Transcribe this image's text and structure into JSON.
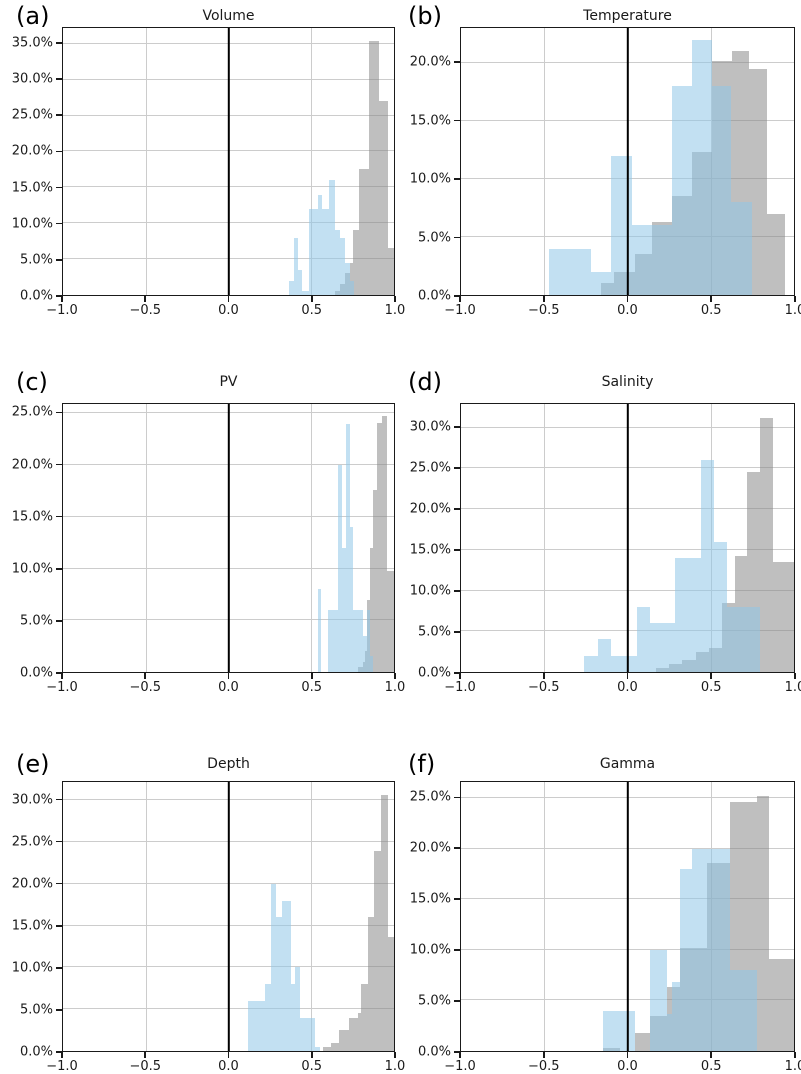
{
  "figure": {
    "background_color": "#ffffff",
    "frame_color": "#1a1a1a",
    "grid_color": "#cccccc",
    "zero_line_color": "#000000",
    "blue_fill_color": "#8FC6E8",
    "gray_fill_color": "#858585",
    "overlap_color": "#a8c4d5",
    "x_ticks": [
      -1.0,
      -0.5,
      0.0,
      0.5,
      1.0
    ],
    "x_tick_labels": [
      "−1.0",
      "−0.5",
      "0.0",
      "0.5",
      "1.0"
    ],
    "x_gridlines": [
      -0.5,
      0.5
    ],
    "bar_schema": [
      "x_start",
      "x_end",
      "percent"
    ]
  },
  "chart_data": [
    {
      "type": "bar",
      "panel_label": "(a)",
      "title": "Volume",
      "xlabel": "",
      "ylabel": "",
      "xlim": [
        -1.0,
        1.0
      ],
      "ylim": [
        0,
        37.2
      ],
      "yticks": [
        0,
        5,
        10,
        15,
        20,
        25,
        30,
        35
      ],
      "ytick_labels": [
        "0.0%",
        "5.0%",
        "10.0%",
        "15.0%",
        "20.0%",
        "25.0%",
        "30.0%",
        "35.0%"
      ],
      "zero_line_x": 0,
      "grid": true,
      "legend": false,
      "series": [
        {
          "name": "gray",
          "bars": [
            [
              0.645,
              0.675,
              0.5
            ],
            [
              0.675,
              0.705,
              1.5
            ],
            [
              0.705,
              0.735,
              3.0
            ],
            [
              0.735,
              0.755,
              4.5
            ],
            [
              0.755,
              0.79,
              9.0
            ],
            [
              0.79,
              0.85,
              17.5
            ],
            [
              0.85,
              0.91,
              35.4
            ],
            [
              0.91,
              0.965,
              27.0
            ],
            [
              0.965,
              1.0,
              6.5
            ]
          ]
        },
        {
          "name": "lightblue",
          "bars": [
            [
              0.367,
              0.397,
              2.0
            ],
            [
              0.397,
              0.422,
              8.0
            ],
            [
              0.422,
              0.447,
              3.5
            ],
            [
              0.447,
              0.487,
              0.5
            ],
            [
              0.487,
              0.54,
              12.0
            ],
            [
              0.54,
              0.565,
              14.0
            ],
            [
              0.565,
              0.61,
              12.0
            ],
            [
              0.61,
              0.645,
              16.0
            ],
            [
              0.645,
              0.675,
              9.0
            ],
            [
              0.675,
              0.705,
              8.0
            ],
            [
              0.705,
              0.735,
              4.5
            ],
            [
              0.735,
              0.76,
              2.0
            ]
          ]
        }
      ]
    },
    {
      "type": "bar",
      "panel_label": "(b)",
      "title": "Temperature",
      "xlabel": "",
      "ylabel": "",
      "xlim": [
        -1.0,
        1.0
      ],
      "ylim": [
        0,
        23.0
      ],
      "yticks": [
        0,
        5,
        10,
        15,
        20
      ],
      "ytick_labels": [
        "0.0%",
        "5.0%",
        "10.0%",
        "15.0%",
        "20.0%"
      ],
      "zero_line_x": 0,
      "grid": true,
      "legend": false,
      "series": [
        {
          "name": "gray",
          "bars": [
            [
              -0.16,
              -0.08,
              1.0
            ],
            [
              -0.08,
              0.045,
              2.0
            ],
            [
              0.045,
              0.15,
              3.5
            ],
            [
              0.15,
              0.27,
              6.3
            ],
            [
              0.27,
              0.385,
              8.5
            ],
            [
              0.385,
              0.505,
              12.3
            ],
            [
              0.505,
              0.625,
              20.2
            ],
            [
              0.625,
              0.73,
              21.0
            ],
            [
              0.73,
              0.835,
              19.5
            ],
            [
              0.835,
              0.945,
              7.0
            ]
          ]
        },
        {
          "name": "lightblue",
          "bars": [
            [
              -0.47,
              -0.22,
              4.0
            ],
            [
              -0.22,
              -0.1,
              2.0
            ],
            [
              -0.1,
              0.03,
              12.0
            ],
            [
              0.03,
              0.27,
              6.0
            ],
            [
              0.27,
              0.385,
              18.0
            ],
            [
              0.385,
              0.505,
              22.0
            ],
            [
              0.505,
              0.62,
              18.0
            ],
            [
              0.62,
              0.745,
              8.0
            ]
          ]
        }
      ]
    },
    {
      "type": "bar",
      "panel_label": "(c)",
      "title": "PV",
      "xlabel": "",
      "ylabel": "",
      "xlim": [
        -1.0,
        1.0
      ],
      "ylim": [
        0,
        25.9
      ],
      "yticks": [
        0,
        5,
        10,
        15,
        20,
        25
      ],
      "ytick_labels": [
        "0.0%",
        "5.0%",
        "10.0%",
        "15.0%",
        "20.0%",
        "25.0%"
      ],
      "zero_line_x": 0,
      "grid": true,
      "legend": false,
      "series": [
        {
          "name": "gray",
          "bars": [
            [
              0.78,
              0.81,
              0.5
            ],
            [
              0.81,
              0.825,
              1.0
            ],
            [
              0.825,
              0.838,
              2.0
            ],
            [
              0.838,
              0.858,
              7.0
            ],
            [
              0.858,
              0.875,
              12.0
            ],
            [
              0.875,
              0.895,
              17.6
            ],
            [
              0.895,
              0.925,
              24.1
            ],
            [
              0.925,
              0.955,
              24.7
            ],
            [
              0.955,
              1.0,
              9.8
            ]
          ]
        },
        {
          "name": "lightblue",
          "bars": [
            [
              0.538,
              0.56,
              8.0
            ],
            [
              0.6,
              0.66,
              6.0
            ],
            [
              0.66,
              0.685,
              20.0
            ],
            [
              0.685,
              0.71,
              12.0
            ],
            [
              0.71,
              0.734,
              24.0
            ],
            [
              0.734,
              0.755,
              14.0
            ],
            [
              0.755,
              0.81,
              6.0
            ],
            [
              0.81,
              0.838,
              3.5
            ],
            [
              0.838,
              0.858,
              6.0
            ],
            [
              0.858,
              0.875,
              1.5
            ]
          ]
        }
      ]
    },
    {
      "type": "bar",
      "panel_label": "(d)",
      "title": "Salinity",
      "xlabel": "",
      "ylabel": "",
      "xlim": [
        -1.0,
        1.0
      ],
      "ylim": [
        0,
        32.9
      ],
      "yticks": [
        0,
        5,
        10,
        15,
        20,
        25,
        30
      ],
      "ytick_labels": [
        "0.0%",
        "5.0%",
        "10.0%",
        "15.0%",
        "20.0%",
        "25.0%",
        "30.0%"
      ],
      "zero_line_x": 0,
      "grid": true,
      "legend": false,
      "series": [
        {
          "name": "gray",
          "bars": [
            [
              0.17,
              0.25,
              0.5
            ],
            [
              0.25,
              0.33,
              1.0
            ],
            [
              0.33,
              0.41,
              1.5
            ],
            [
              0.41,
              0.49,
              2.5
            ],
            [
              0.49,
              0.565,
              3.0
            ],
            [
              0.565,
              0.645,
              8.5
            ],
            [
              0.645,
              0.72,
              14.2
            ],
            [
              0.72,
              0.795,
              24.6
            ],
            [
              0.795,
              0.875,
              31.2
            ],
            [
              0.875,
              1.0,
              13.5
            ]
          ]
        },
        {
          "name": "lightblue",
          "bars": [
            [
              -0.26,
              -0.18,
              2.0
            ],
            [
              -0.18,
              -0.1,
              4.0
            ],
            [
              -0.1,
              -0.02,
              2.0
            ],
            [
              -0.02,
              0.055,
              2.0
            ],
            [
              0.055,
              0.135,
              8.0
            ],
            [
              0.135,
              0.285,
              6.0
            ],
            [
              0.285,
              0.44,
              14.0
            ],
            [
              0.44,
              0.52,
              26.0
            ],
            [
              0.52,
              0.6,
              16.0
            ],
            [
              0.6,
              0.795,
              8.0
            ]
          ]
        }
      ]
    },
    {
      "type": "bar",
      "panel_label": "(e)",
      "title": "Depth",
      "xlabel": "",
      "ylabel": "",
      "xlim": [
        -1.0,
        1.0
      ],
      "ylim": [
        0,
        32.2
      ],
      "yticks": [
        0,
        5,
        10,
        15,
        20,
        25,
        30
      ],
      "ytick_labels": [
        "0.0%",
        "5.0%",
        "10.0%",
        "15.0%",
        "20.0%",
        "25.0%",
        "30.0%"
      ],
      "zero_line_x": 0,
      "grid": true,
      "legend": false,
      "series": [
        {
          "name": "gray",
          "bars": [
            [
              0.57,
              0.62,
              0.5
            ],
            [
              0.62,
              0.67,
              1.0
            ],
            [
              0.67,
              0.73,
              2.5
            ],
            [
              0.73,
              0.78,
              4.0
            ],
            [
              0.78,
              0.8,
              4.5
            ],
            [
              0.8,
              0.845,
              8.0
            ],
            [
              0.845,
              0.88,
              16.0
            ],
            [
              0.88,
              0.92,
              24.0
            ],
            [
              0.92,
              0.965,
              30.6
            ],
            [
              0.965,
              1.0,
              13.7
            ]
          ]
        },
        {
          "name": "lightblue",
          "bars": [
            [
              0.115,
              0.22,
              6.0
            ],
            [
              0.22,
              0.255,
              8.0
            ],
            [
              0.255,
              0.29,
              20.0
            ],
            [
              0.29,
              0.325,
              16.0
            ],
            [
              0.325,
              0.38,
              18.0
            ],
            [
              0.38,
              0.4,
              8.0
            ],
            [
              0.4,
              0.43,
              10.0
            ],
            [
              0.43,
              0.52,
              4.0
            ],
            [
              0.52,
              0.555,
              0.5
            ]
          ]
        }
      ]
    },
    {
      "type": "bar",
      "panel_label": "(f)",
      "title": "Gamma",
      "xlabel": "",
      "ylabel": "",
      "xlim": [
        -1.0,
        1.0
      ],
      "ylim": [
        0,
        26.6
      ],
      "yticks": [
        0,
        5,
        10,
        15,
        20,
        25
      ],
      "ytick_labels": [
        "0.0%",
        "5.0%",
        "10.0%",
        "15.0%",
        "20.0%",
        "25.0%"
      ],
      "zero_line_x": 0,
      "grid": true,
      "legend": false,
      "series": [
        {
          "name": "gray",
          "bars": [
            [
              -0.145,
              -0.045,
              0.3
            ],
            [
              0.045,
              0.135,
              1.8
            ],
            [
              0.135,
              0.235,
              3.5
            ],
            [
              0.235,
              0.315,
              6.3
            ],
            [
              0.315,
              0.475,
              10.2
            ],
            [
              0.475,
              0.615,
              18.6
            ],
            [
              0.615,
              0.775,
              24.6
            ],
            [
              0.775,
              0.85,
              25.2
            ],
            [
              0.85,
              1.0,
              9.1
            ]
          ]
        },
        {
          "name": "lightblue",
          "bars": [
            [
              -0.145,
              0.045,
              4.0
            ],
            [
              0.135,
              0.235,
              10.0
            ],
            [
              0.235,
              0.27,
              3.7
            ],
            [
              0.27,
              0.315,
              6.8
            ],
            [
              0.315,
              0.39,
              18.0
            ],
            [
              0.39,
              0.615,
              20.0
            ],
            [
              0.615,
              0.775,
              8.0
            ]
          ]
        }
      ]
    }
  ]
}
